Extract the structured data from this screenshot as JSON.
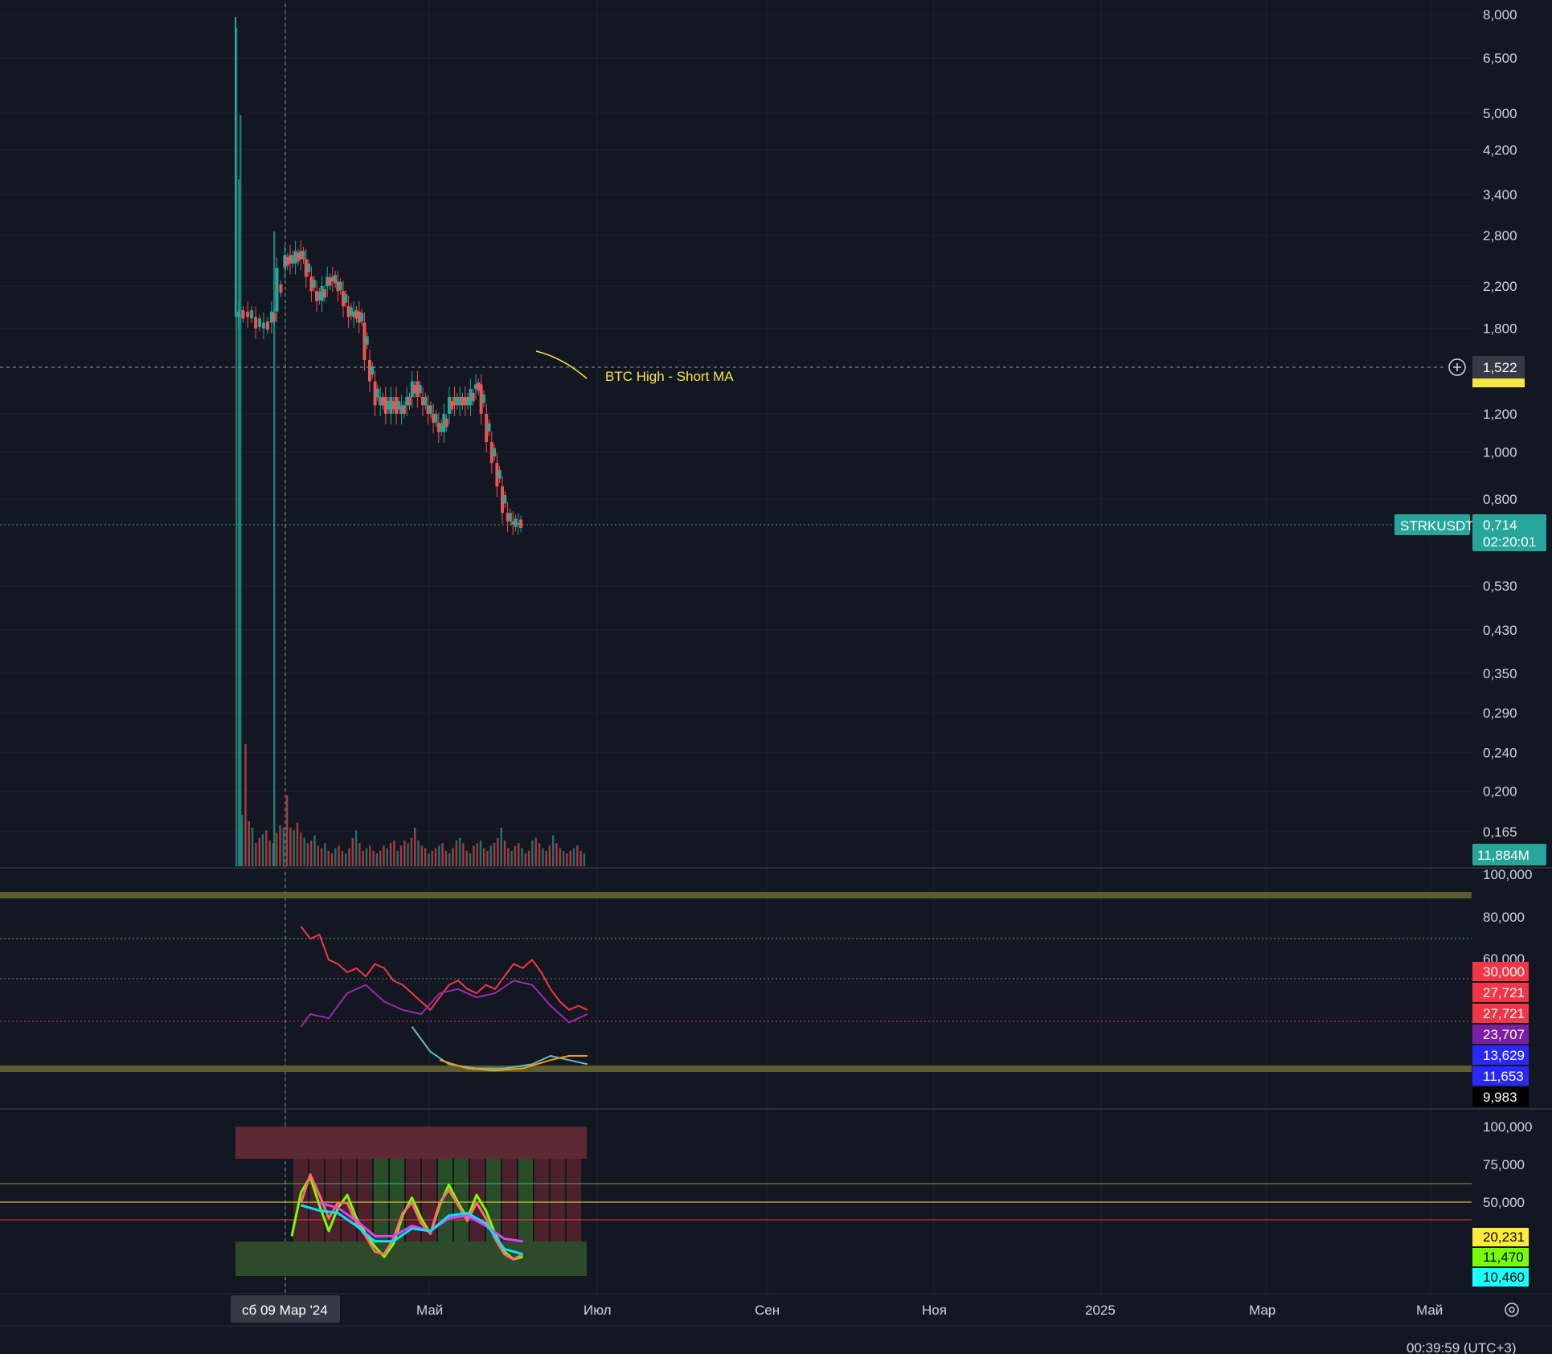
{
  "chart_data": [
    {
      "type": "candlestick",
      "symbol": "STRKUSDT",
      "scale": "log",
      "ylim": [
        0.14,
        8.4
      ],
      "yticks": [
        "8,000",
        "6,500",
        "5,000",
        "4,200",
        "3,400",
        "2,800",
        "2,200",
        "1,800",
        "1,200",
        "1,000",
        "0,800",
        "0,530",
        "0,430",
        "0,350",
        "0,290",
        "0,240",
        "0,200",
        "0,165"
      ],
      "ytick_values": [
        8.0,
        6.5,
        5.0,
        4.2,
        3.4,
        2.8,
        2.2,
        1.8,
        1.2,
        1.0,
        0.8,
        0.53,
        0.43,
        0.35,
        0.29,
        0.24,
        0.2,
        0.165
      ],
      "price_path": [
        [
          0,
          7.9
        ],
        [
          0.5,
          1.9
        ],
        [
          4,
          1.95
        ],
        [
          7,
          1.9
        ],
        [
          10,
          1.8
        ],
        [
          13,
          1.85
        ],
        [
          15,
          1.95
        ],
        [
          18,
          2.4
        ],
        [
          20,
          2.55
        ],
        [
          22,
          2.45
        ],
        [
          24,
          2.6
        ],
        [
          26,
          2.5
        ],
        [
          28,
          2.3
        ],
        [
          30,
          2.15
        ],
        [
          32,
          2.05
        ],
        [
          34,
          2.2
        ],
        [
          36,
          2.3
        ],
        [
          38,
          2.25
        ],
        [
          40,
          2.15
        ],
        [
          42,
          2.0
        ],
        [
          44,
          1.9
        ],
        [
          46,
          1.95
        ],
        [
          48,
          1.85
        ],
        [
          50,
          1.55
        ],
        [
          52,
          1.4
        ],
        [
          54,
          1.25
        ],
        [
          56,
          1.3
        ],
        [
          58,
          1.2
        ],
        [
          60,
          1.3
        ],
        [
          62,
          1.2
        ],
        [
          64,
          1.25
        ],
        [
          66,
          1.3
        ],
        [
          68,
          1.4
        ],
        [
          70,
          1.3
        ],
        [
          72,
          1.25
        ],
        [
          74,
          1.2
        ],
        [
          76,
          1.15
        ],
        [
          78,
          1.1
        ],
        [
          80,
          1.2
        ],
        [
          82,
          1.3
        ],
        [
          84,
          1.25
        ],
        [
          86,
          1.3
        ],
        [
          88,
          1.25
        ],
        [
          90,
          1.35
        ],
        [
          92,
          1.38
        ],
        [
          94,
          1.2
        ],
        [
          96,
          1.05
        ],
        [
          98,
          0.95
        ],
        [
          100,
          0.85
        ],
        [
          102,
          0.75
        ],
        [
          104,
          0.72
        ],
        [
          106,
          0.71
        ],
        [
          108,
          0.714
        ]
      ],
      "volume_bars": [
        40,
        95,
        35,
        30,
        18,
        22,
        25,
        28,
        20,
        18,
        26,
        32,
        30,
        55,
        30,
        28,
        34,
        26,
        22,
        18,
        20,
        24,
        16,
        14,
        18,
        12,
        10,
        14,
        16,
        12,
        10,
        14,
        22,
        28,
        18,
        12,
        14,
        16,
        12,
        10,
        12,
        16,
        14,
        18,
        20,
        12,
        16,
        20,
        18,
        22,
        30,
        20,
        16,
        14,
        10,
        12,
        14,
        16,
        18,
        12,
        10,
        14,
        20,
        22,
        18,
        12,
        10,
        16,
        18,
        20,
        14,
        12,
        16,
        18,
        22,
        30,
        20,
        14,
        12,
        16,
        18,
        14,
        10,
        12,
        20,
        22,
        18,
        14,
        12,
        16,
        24,
        18,
        14,
        12,
        10,
        12,
        14,
        16,
        12,
        10
      ],
      "last_price": "0,714",
      "countdown": "02:20:01",
      "crosshair_price": "1,522",
      "volume_label": "11,884M",
      "annotation": "BTC High - Short MA"
    },
    {
      "type": "line",
      "panel": "indicator-1",
      "ylim": [
        0,
        100
      ],
      "yticks": [
        "100,000",
        "80,000",
        "60,000"
      ],
      "ytick_values": [
        100,
        80,
        60
      ],
      "series": [
        {
          "color": "#f23645",
          "values": [
            [
              6,
              72
            ],
            [
              8,
              66
            ],
            [
              10,
              68
            ],
            [
              12,
              56
            ],
            [
              14,
              54
            ],
            [
              16,
              50
            ],
            [
              18,
              52
            ],
            [
              20,
              48
            ],
            [
              22,
              54
            ],
            [
              24,
              52
            ],
            [
              26,
              46
            ],
            [
              28,
              44
            ],
            [
              30,
              40
            ],
            [
              32,
              36
            ],
            [
              34,
              32
            ],
            [
              36,
              38
            ],
            [
              38,
              44
            ],
            [
              40,
              46
            ],
            [
              42,
              42
            ],
            [
              44,
              40
            ],
            [
              46,
              44
            ],
            [
              48,
              42
            ],
            [
              50,
              48
            ],
            [
              52,
              54
            ],
            [
              54,
              52
            ],
            [
              56,
              56
            ],
            [
              58,
              50
            ],
            [
              60,
              42
            ],
            [
              62,
              36
            ],
            [
              64,
              32
            ],
            [
              66,
              34
            ],
            [
              68,
              32
            ]
          ]
        },
        {
          "color": "#9c27b0",
          "values": [
            [
              6,
              24
            ],
            [
              8,
              30
            ],
            [
              12,
              28
            ],
            [
              16,
              40
            ],
            [
              20,
              44
            ],
            [
              24,
              36
            ],
            [
              28,
              32
            ],
            [
              32,
              30
            ],
            [
              36,
              40
            ],
            [
              40,
              42
            ],
            [
              44,
              38
            ],
            [
              48,
              40
            ],
            [
              52,
              46
            ],
            [
              56,
              44
            ],
            [
              60,
              34
            ],
            [
              64,
              26
            ],
            [
              68,
              30
            ]
          ]
        },
        {
          "color": "#5fbfbf",
          "values": [
            [
              30,
              24
            ],
            [
              34,
              12
            ],
            [
              38,
              6
            ],
            [
              44,
              4
            ],
            [
              50,
              4
            ],
            [
              56,
              6
            ],
            [
              60,
              10
            ],
            [
              64,
              8
            ],
            [
              68,
              6
            ]
          ]
        },
        {
          "color": "#ff9800",
          "values": [
            [
              36,
              8
            ],
            [
              42,
              4
            ],
            [
              48,
              3
            ],
            [
              54,
              4
            ],
            [
              60,
              8
            ],
            [
              64,
              10
            ],
            [
              68,
              10
            ]
          ]
        }
      ],
      "level_tags": [
        {
          "value": "30,000",
          "bg": "#f23645",
          "fg": "#ffffff"
        },
        {
          "value": "27,721",
          "bg": "#f23645",
          "fg": "#ffffff"
        },
        {
          "value": "27,721",
          "bg": "#f23645",
          "fg": "#ffffff"
        },
        {
          "value": "23,707",
          "bg": "#7b1fa2",
          "fg": "#ffffff"
        },
        {
          "value": "13,629",
          "bg": "#2929ff",
          "fg": "#ffffff"
        },
        {
          "value": "11,653",
          "bg": "#2929ff",
          "fg": "#ffffff"
        },
        {
          "value": "9,983",
          "bg": "#000000",
          "fg": "#ffffff"
        }
      ]
    },
    {
      "type": "line",
      "panel": "indicator-2",
      "ylim": [
        0,
        100
      ],
      "yticks": [
        "100,000",
        "75,000",
        "50,000"
      ],
      "ytick_values": [
        100,
        75,
        50
      ],
      "series": [
        {
          "color": "#76ff03",
          "values": [
            [
              4,
              26
            ],
            [
              6,
              60
            ],
            [
              8,
              72
            ],
            [
              10,
              50
            ],
            [
              12,
              30
            ],
            [
              14,
              48
            ],
            [
              16,
              58
            ],
            [
              18,
              40
            ],
            [
              20,
              28
            ],
            [
              22,
              18
            ],
            [
              24,
              10
            ],
            [
              26,
              20
            ],
            [
              28,
              42
            ],
            [
              30,
              56
            ],
            [
              32,
              40
            ],
            [
              34,
              28
            ],
            [
              36,
              50
            ],
            [
              38,
              66
            ],
            [
              40,
              52
            ],
            [
              42,
              40
            ],
            [
              44,
              58
            ],
            [
              46,
              46
            ],
            [
              48,
              28
            ],
            [
              50,
              14
            ],
            [
              52,
              8
            ],
            [
              54,
              10
            ]
          ]
        },
        {
          "color": "#ff6b6b",
          "values": [
            [
              6,
              52
            ],
            [
              8,
              74
            ],
            [
              10,
              58
            ],
            [
              12,
              40
            ],
            [
              14,
              52
            ],
            [
              16,
              52
            ],
            [
              18,
              36
            ],
            [
              20,
              26
            ],
            [
              22,
              14
            ],
            [
              24,
              12
            ],
            [
              26,
              24
            ],
            [
              28,
              44
            ],
            [
              30,
              52
            ],
            [
              32,
              36
            ],
            [
              34,
              28
            ],
            [
              36,
              52
            ],
            [
              38,
              62
            ],
            [
              40,
              50
            ],
            [
              42,
              38
            ],
            [
              44,
              52
            ],
            [
              46,
              40
            ],
            [
              48,
              24
            ],
            [
              50,
              12
            ],
            [
              52,
              8
            ],
            [
              54,
              12
            ]
          ]
        },
        {
          "color": "#e040fb",
          "values": [
            [
              10,
              52
            ],
            [
              14,
              48
            ],
            [
              18,
              38
            ],
            [
              22,
              26
            ],
            [
              26,
              26
            ],
            [
              30,
              34
            ],
            [
              34,
              30
            ],
            [
              38,
              40
            ],
            [
              42,
              42
            ],
            [
              46,
              34
            ],
            [
              50,
              24
            ],
            [
              54,
              22
            ]
          ]
        },
        {
          "color": "#00e5ff",
          "values": [
            [
              6,
              50
            ],
            [
              10,
              46
            ],
            [
              14,
              44
            ],
            [
              18,
              34
            ],
            [
              22,
              22
            ],
            [
              26,
              22
            ],
            [
              30,
              32
            ],
            [
              34,
              30
            ],
            [
              38,
              42
            ],
            [
              42,
              44
            ],
            [
              46,
              36
            ],
            [
              50,
              16
            ],
            [
              54,
              12
            ]
          ]
        }
      ],
      "level_tags": [
        {
          "value": "20,231",
          "bg": "#ffeb3b",
          "fg": "#000000"
        },
        {
          "value": "11,470",
          "bg": "#76ff03",
          "fg": "#000000"
        },
        {
          "value": "10,460",
          "bg": "#18ffff",
          "fg": "#000000"
        }
      ]
    }
  ],
  "time_axis": {
    "labels": [
      "Май",
      "Июл",
      "Сен",
      "Ноя",
      "2025",
      "Мар",
      "Май"
    ],
    "crosshair_label": "сб 09 Мар '24"
  },
  "footer": {
    "clock": "00:39:59 (UTC+3)"
  },
  "colors": {
    "background": "#131722",
    "grid": "#1e222d",
    "up": "#26a69a",
    "down": "#ef5350"
  }
}
